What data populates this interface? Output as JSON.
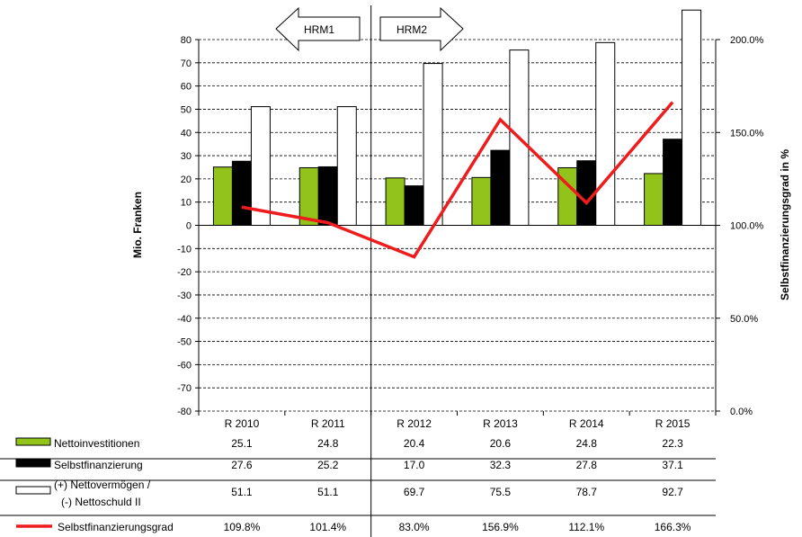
{
  "chart_data": {
    "type": "bar",
    "categories": [
      "R 2010",
      "R 2011",
      "R 2012",
      "R 2013",
      "R 2014",
      "R 2015"
    ],
    "series": [
      {
        "name": "Nettoinvestitionen",
        "kind": "bar",
        "color": "#92c31b",
        "values": [
          25.1,
          24.8,
          20.4,
          20.6,
          24.8,
          22.3
        ],
        "labels": [
          "25.1",
          "24.8",
          "20.4",
          "20.6",
          "24.8",
          "22.3"
        ]
      },
      {
        "name": "Selbstfinanzierung",
        "kind": "bar",
        "color": "#000000",
        "values": [
          27.6,
          25.2,
          17.0,
          32.3,
          27.8,
          37.1
        ],
        "labels": [
          "27.6",
          "25.2",
          "17.0",
          "32.3",
          "27.8",
          "37.1"
        ]
      },
      {
        "name_lines": [
          "(+) Nettovermögen /",
          "(-) Nettoschuld II"
        ],
        "kind": "bar",
        "color": "#ffffff",
        "values": [
          51.1,
          51.1,
          69.7,
          75.5,
          78.7,
          92.7
        ],
        "labels": [
          "51.1",
          "51.1",
          "69.7",
          "75.5",
          "78.7",
          "92.7"
        ]
      },
      {
        "name": "Selbstfinanzierungsgrad",
        "kind": "line",
        "axis": "right",
        "color": "#ee1c1c",
        "values": [
          109.8,
          101.4,
          83.0,
          156.9,
          112.1,
          166.3
        ],
        "labels": [
          "109.8%",
          "101.4%",
          "83.0%",
          "156.9%",
          "112.1%",
          "166.3%"
        ]
      }
    ],
    "ylabel": "Mio. Franken",
    "ylim": [
      -80,
      80
    ],
    "yticks": [
      80,
      70,
      60,
      50,
      40,
      30,
      20,
      10,
      0,
      -10,
      -20,
      -30,
      -40,
      -50,
      -60,
      -70,
      -80
    ],
    "y2label": "Selbstfinanzierungsgrad in %",
    "y2lim": [
      0,
      200
    ],
    "y2ticks": [
      "200.0%",
      "150.0%",
      "100.0%",
      "50.0%",
      "0.0%"
    ],
    "grid": true,
    "legend": "data table below chart",
    "annotations": [
      {
        "text": "HRM1",
        "direction": "left"
      },
      {
        "text": "HRM2",
        "direction": "right"
      }
    ]
  }
}
